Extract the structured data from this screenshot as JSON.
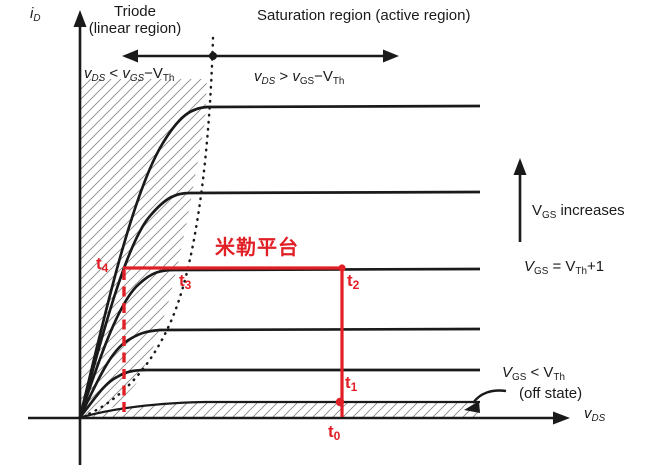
{
  "colors": {
    "red": "#e11f26",
    "ink": "#1a1a1a",
    "hatch": "#8b8b8b",
    "bg": "#ffffff"
  },
  "axes": {
    "y_label": [
      {
        "t": "i",
        "i": true
      },
      {
        "t": "D",
        "i": true,
        "sub": true
      }
    ],
    "x_label": [
      {
        "t": "v",
        "i": true
      },
      {
        "t": "DS",
        "i": true,
        "sub": true
      }
    ]
  },
  "regions": {
    "triode_line1": "Triode",
    "triode_line2": "(linear region)",
    "saturation_title": "Saturation region (active region)",
    "triode_condition": [
      {
        "t": "v",
        "i": true
      },
      {
        "t": "DS",
        "i": true,
        "sub": true
      },
      {
        "t": " < "
      },
      {
        "t": "v",
        "i": true
      },
      {
        "t": "GS",
        "i": true,
        "sub": true
      },
      {
        "t": "−V"
      },
      {
        "t": "Th",
        "sub": true
      }
    ],
    "saturation_condition": [
      {
        "t": "v",
        "i": true
      },
      {
        "t": "DS",
        "i": true,
        "sub": true
      },
      {
        "t": " > "
      },
      {
        "t": "v",
        "i": true
      },
      {
        "t": "GS",
        "sub": true
      },
      {
        "t": "−V"
      },
      {
        "t": "Th",
        "sub": true
      }
    ]
  },
  "annotations": {
    "miller_plateau": "米勒平台",
    "vgs_increases": [
      {
        "t": "V"
      },
      {
        "t": "GS",
        "sub": true
      },
      {
        "t": " increases"
      }
    ],
    "vgs_equals": [
      {
        "t": "V",
        "i": true
      },
      {
        "t": "GS",
        "sub": true
      },
      {
        "t": " = "
      },
      {
        "t": "V"
      },
      {
        "t": "Th",
        "sub": true
      },
      {
        "t": "+1"
      }
    ],
    "vgs_off": [
      {
        "t": "V",
        "i": true
      },
      {
        "t": "GS",
        "sub": true
      },
      {
        "t": " < "
      },
      {
        "t": "V"
      },
      {
        "t": "Th",
        "sub": true
      }
    ],
    "off_state": "(off state)",
    "time_points": {
      "t4": {
        "base": "t",
        "sub": "4"
      },
      "t3": {
        "base": "t",
        "sub": "3"
      },
      "t2": {
        "base": "t",
        "sub": "2"
      },
      "t1": {
        "base": "t",
        "sub": "1"
      },
      "t0": {
        "base": "t",
        "sub": "0"
      }
    }
  }
}
